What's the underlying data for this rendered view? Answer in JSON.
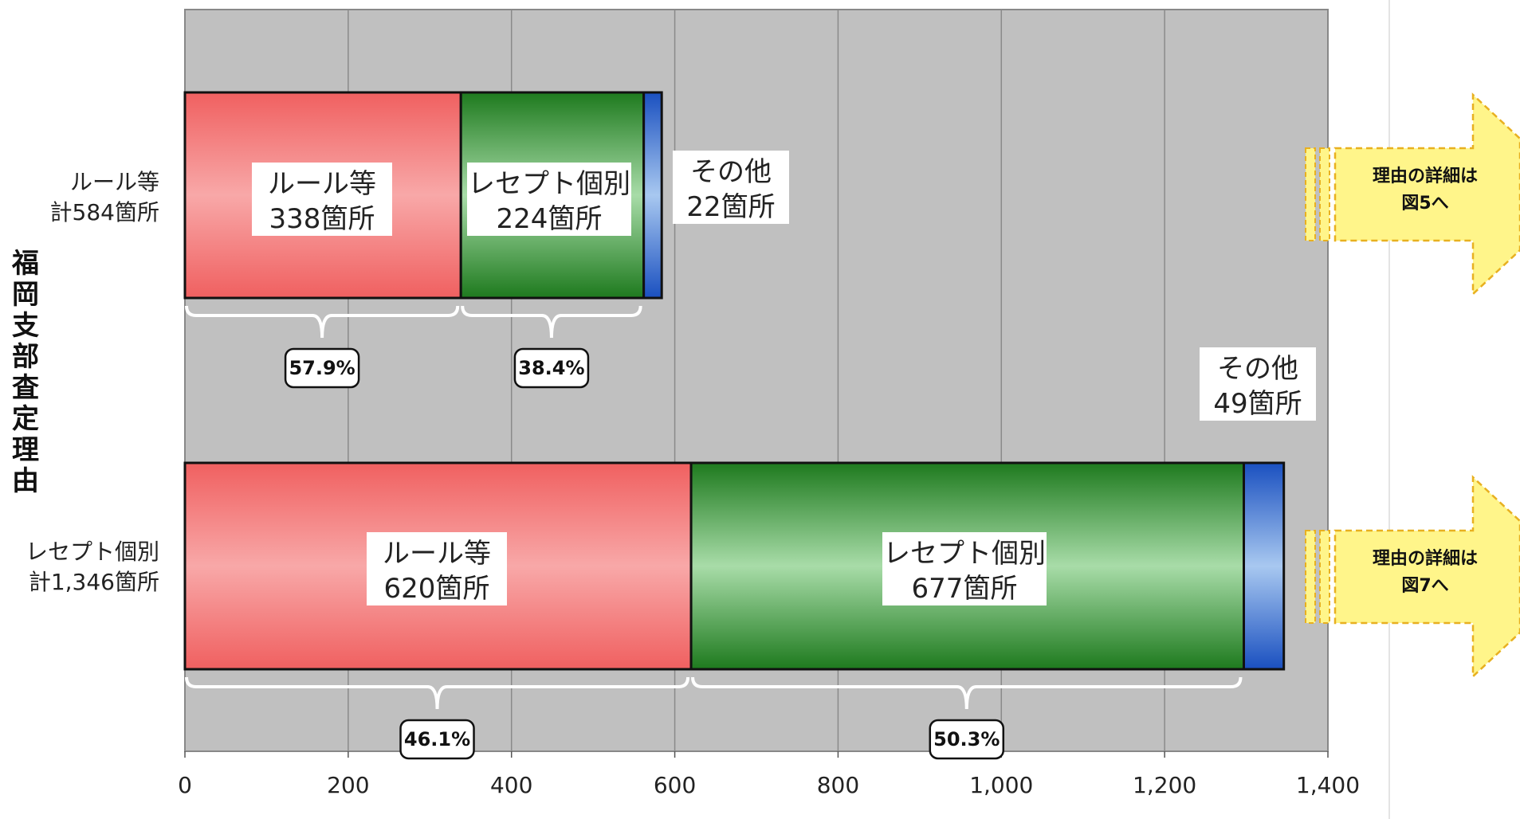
{
  "chart_data": {
    "type": "bar",
    "orientation": "horizontal",
    "stacked": true,
    "ylabel": "福岡支部査定理由",
    "xlim": [
      0,
      1400
    ],
    "xticks": [
      "0",
      "200",
      "400",
      "600",
      "800",
      "1,000",
      "1,200",
      "1,400"
    ],
    "grid": true,
    "categories": [
      {
        "label_line1": "ルール等",
        "label_line2": "計584箇所"
      },
      {
        "label_line1": "レセプト個別",
        "label_line2": "計1,346箇所"
      }
    ],
    "series": [
      {
        "values": [
          338,
          620
        ],
        "color_top": "#f06060",
        "color_mid": "#f8a8a8",
        "label_line1": "ルール等",
        "label_lines2": [
          "338箇所",
          "620箇所"
        ]
      },
      {
        "values": [
          224,
          677
        ],
        "color_top": "#1e7a1e",
        "color_mid": "#a8dca8",
        "label_line1": "レセプト個別",
        "label_lines2": [
          "224箇所",
          "677箇所"
        ]
      },
      {
        "values": [
          22,
          49
        ],
        "color_top": "#1a50c0",
        "color_mid": "#a8c8f0",
        "label_line1": "その他",
        "label_lines2": [
          "22箇所",
          "49箇所"
        ]
      }
    ],
    "percent_callouts": [
      [
        "57.9%",
        "38.4%"
      ],
      [
        "46.1%",
        "50.3%"
      ]
    ],
    "annotations": [
      {
        "line1": "理由の詳細は",
        "line2": "図5へ"
      },
      {
        "line1": "理由の詳細は",
        "line2": "図7へ"
      }
    ],
    "colors": {
      "plot_bg": "#c0c0c0",
      "grid": "#8a8a8a",
      "arrow": "#fff58a",
      "arrow_border": "#e8b020"
    }
  }
}
